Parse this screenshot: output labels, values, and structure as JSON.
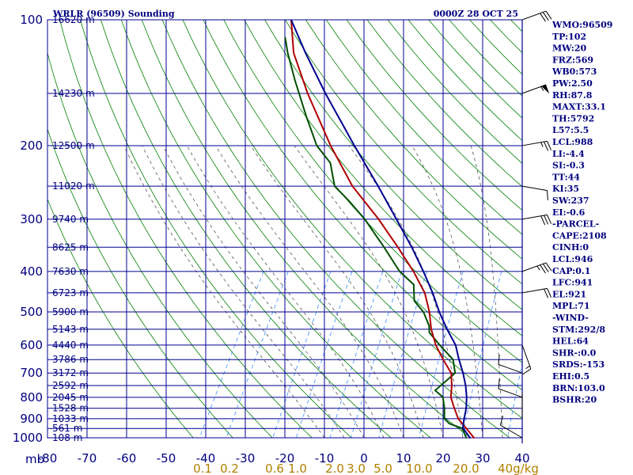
{
  "header": {
    "left_title": "WRLR (96509) Sounding",
    "right_title": "0000Z 28 OCT 25"
  },
  "chart_data": {
    "type": "line",
    "title": "WRLR (96509) Sounding",
    "subtitle": "0000Z 28 OCT 25",
    "pressure_axis": {
      "label": "mb",
      "ticks": [
        100,
        200,
        300,
        400,
        500,
        600,
        700,
        800,
        900,
        1000
      ],
      "range": [
        100,
        1000
      ],
      "scale": "log"
    },
    "temperature_axis": {
      "ticks": [
        "-80",
        "-70",
        "-60",
        "-50",
        "-40",
        "-30",
        "-20",
        "-10",
        "0",
        "10",
        "20",
        "30",
        "40"
      ],
      "range": [
        -80,
        40
      ]
    },
    "mixing_ratio_labels": [
      "0.1",
      "0.2",
      "0.6",
      "1.0",
      "2.0",
      "3.0",
      "5.0",
      "10.0",
      "20.0",
      "40g/kg"
    ],
    "heights": [
      {
        "p": 100,
        "label": "16620 m"
      },
      {
        "p": 150,
        "label": "14230 m"
      },
      {
        "p": 200,
        "label": "12500 m"
      },
      {
        "p": 250,
        "label": "11020 m"
      },
      {
        "p": 300,
        "label": "9740 m"
      },
      {
        "p": 350,
        "label": "8625 m"
      },
      {
        "p": 400,
        "label": "7630 m"
      },
      {
        "p": 450,
        "label": "6723 m"
      },
      {
        "p": 500,
        "label": "5900 m"
      },
      {
        "p": 550,
        "label": "5143 m"
      },
      {
        "p": 600,
        "label": "4440 m"
      },
      {
        "p": 650,
        "label": "3786 m"
      },
      {
        "p": 700,
        "label": "3172 m"
      },
      {
        "p": 750,
        "label": "2592 m"
      },
      {
        "p": 800,
        "label": "2045 m"
      },
      {
        "p": 850,
        "label": "1528 m"
      },
      {
        "p": 900,
        "label": "1033 m"
      },
      {
        "p": 950,
        "label": "561 m"
      },
      {
        "p": 1000,
        "label": "108 m"
      }
    ],
    "series": [
      {
        "name": "Dewpoint",
        "color": "#005000",
        "points": [
          {
            "p": 1003,
            "t": 26.0
          },
          {
            "p": 950,
            "t": 23.5
          },
          {
            "p": 925,
            "t": 19.5
          },
          {
            "p": 900,
            "t": 17.5
          },
          {
            "p": 850,
            "t": 16.0
          },
          {
            "p": 800,
            "t": 14.0
          },
          {
            "p": 770,
            "t": 11.0
          },
          {
            "p": 700,
            "t": 13.5
          },
          {
            "p": 650,
            "t": 11.0
          },
          {
            "p": 600,
            "t": 5.5
          },
          {
            "p": 560,
            "t": 1.0
          },
          {
            "p": 540,
            "t": 0.0
          },
          {
            "p": 500,
            "t": -3.5
          },
          {
            "p": 470,
            "t": -7.5
          },
          {
            "p": 430,
            "t": -10.0
          },
          {
            "p": 400,
            "t": -15.5
          },
          {
            "p": 350,
            "t": -23.0
          },
          {
            "p": 300,
            "t": -32.0
          },
          {
            "p": 270,
            "t": -39.0
          },
          {
            "p": 250,
            "t": -44.5
          },
          {
            "p": 220,
            "t": -49.0
          },
          {
            "p": 200,
            "t": -55.0
          },
          {
            "p": 170,
            "t": -62.0
          },
          {
            "p": 140,
            "t": -70.0
          },
          {
            "p": 120,
            "t": -76.0
          },
          {
            "p": 110,
            "t": -79.0
          }
        ]
      },
      {
        "name": "Temperature",
        "color": "#b00000",
        "points": [
          {
            "p": 1003,
            "t": 28.0
          },
          {
            "p": 950,
            "t": 24.5
          },
          {
            "p": 900,
            "t": 21.0
          },
          {
            "p": 850,
            "t": 18.5
          },
          {
            "p": 800,
            "t": 16.0
          },
          {
            "p": 750,
            "t": 14.5
          },
          {
            "p": 700,
            "t": 12.5
          },
          {
            "p": 650,
            "t": 8.5
          },
          {
            "p": 600,
            "t": 4.5
          },
          {
            "p": 550,
            "t": 1.0
          },
          {
            "p": 500,
            "t": -2.0
          },
          {
            "p": 450,
            "t": -6.0
          },
          {
            "p": 400,
            "t": -12.0
          },
          {
            "p": 350,
            "t": -19.5
          },
          {
            "p": 300,
            "t": -28.5
          },
          {
            "p": 250,
            "t": -40.0
          },
          {
            "p": 200,
            "t": -51.5
          },
          {
            "p": 150,
            "t": -65.0
          },
          {
            "p": 120,
            "t": -74.5
          },
          {
            "p": 100,
            "t": -80.0
          }
        ]
      },
      {
        "name": "Parcel",
        "color": "#000090",
        "points": [
          {
            "p": 1003,
            "t": 27.0
          },
          {
            "p": 946,
            "t": 23.5
          },
          {
            "p": 900,
            "t": 22.5
          },
          {
            "p": 850,
            "t": 21.5
          },
          {
            "p": 800,
            "t": 20.0
          },
          {
            "p": 750,
            "t": 18.0
          },
          {
            "p": 700,
            "t": 15.5
          },
          {
            "p": 650,
            "t": 12.5
          },
          {
            "p": 600,
            "t": 9.5
          },
          {
            "p": 550,
            "t": 5.0
          },
          {
            "p": 500,
            "t": 0.5
          },
          {
            "p": 450,
            "t": -4.0
          },
          {
            "p": 400,
            "t": -9.5
          },
          {
            "p": 350,
            "t": -16.0
          },
          {
            "p": 300,
            "t": -24.0
          },
          {
            "p": 250,
            "t": -33.5
          },
          {
            "p": 200,
            "t": -45.5
          },
          {
            "p": 150,
            "t": -60.5
          },
          {
            "p": 120,
            "t": -71.5
          },
          {
            "p": 100,
            "t": -80.0
          }
        ]
      }
    ],
    "winds": [
      {
        "p": 100,
        "dir": 70,
        "spd": 30
      },
      {
        "p": 150,
        "dir": 70,
        "spd": 55
      },
      {
        "p": 200,
        "dir": 80,
        "spd": 25
      },
      {
        "p": 250,
        "dir": 100,
        "spd": 10
      },
      {
        "p": 300,
        "dir": 80,
        "spd": 30
      },
      {
        "p": 400,
        "dir": 70,
        "spd": 35
      },
      {
        "p": 450,
        "dir": 80,
        "spd": 20
      },
      {
        "p": 600,
        "dir": 160,
        "spd": 15
      },
      {
        "p": 700,
        "dir": 290,
        "spd": 10
      },
      {
        "p": 800,
        "dir": 290,
        "spd": 10
      },
      {
        "p": 900,
        "dir": 0,
        "spd": 3
      },
      {
        "p": 1000,
        "dir": 300,
        "spd": 10
      }
    ],
    "indices": [
      "WMO:96509",
      "TP:102",
      "MW:20",
      "FRZ:569",
      "WB0:573",
      "PW:2.50",
      "RH:87.8",
      "MAXT:33.1",
      "TH:5792",
      "L57:5.5",
      "LCL:988",
      "LI:-4.4",
      "SI:-0.3",
      "TT:44",
      "KI:35",
      "SW:237",
      "EI:-0.6",
      "-PARCEL-",
      "CAPE:2108",
      "CINH:0",
      "LCL:946",
      "CAP:0.1",
      "LFC:941",
      "EL:921",
      "MPL:71",
      "-WIND-",
      "STM:292/8",
      "HEL:64",
      "SHR-:0.0",
      "SRDS:-153",
      "EHI:0.5",
      "BRN:103.0",
      "BSHR:20"
    ],
    "colors": {
      "grid": "#000090",
      "dry_adiabat": "#008000",
      "moist_adiabat": "#404040",
      "mixing_ratio": "#2080ff",
      "axis_text": "#000080",
      "mixing_label": "#b08000"
    }
  }
}
